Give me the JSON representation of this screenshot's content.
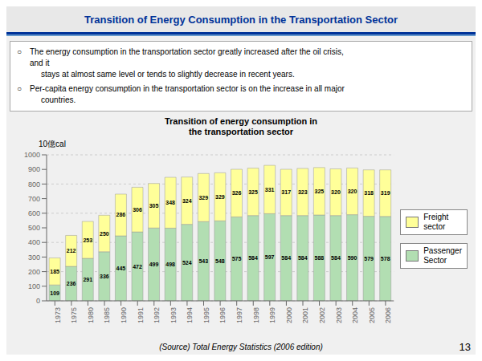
{
  "chart_data": {
    "type": "bar",
    "stacked": true,
    "title": "Transition of Energy Consumption in the Transportation Sector",
    "subtitle": "Transition of energy consumption in\nthe transportation sector",
    "ylabel": "10億cal",
    "annotations": [
      "○",
      "The energy consumption in the transportation sector greatly increased after the oil crisis,",
      "and it",
      "stays at almost same level or tends to slightly decrease in recent years.",
      "○",
      "Per-capita energy consumption in the transportation sector is on the increase in all major",
      "countries.",
      "(Source) Total Energy Statistics (2006 edition)",
      "13"
    ],
    "categories": [
      "1973",
      "1975",
      "1980",
      "1985",
      "1990",
      "1991",
      "1992",
      "1993",
      "1994",
      "1995",
      "1996",
      "1997",
      "1998",
      "1999",
      "2000",
      "2001",
      "2002",
      "2003",
      "2004",
      "2005",
      "2006"
    ],
    "series": [
      {
        "name": "Passenger\nSector",
        "color": "#b2deb2",
        "values": [
          109,
          236,
          291,
          336,
          445,
          472,
          499,
          498,
          524,
          543,
          548,
          575,
          584,
          597,
          584,
          584,
          588,
          584,
          590,
          579,
          578
        ]
      },
      {
        "name": "Freight\nsector",
        "color": "#ffff99",
        "values": [
          185,
          212,
          253,
          250,
          286,
          306,
          305,
          348,
          324,
          329,
          329,
          326,
          325,
          331,
          317,
          323,
          325,
          320,
          320,
          318,
          319
        ]
      }
    ],
    "ylim": [
      0,
      1000
    ],
    "yticks": [
      0,
      100,
      200,
      300,
      400,
      500,
      600,
      700,
      800,
      900,
      1000
    ],
    "grid": true,
    "data_labels": true,
    "legend": "right"
  }
}
